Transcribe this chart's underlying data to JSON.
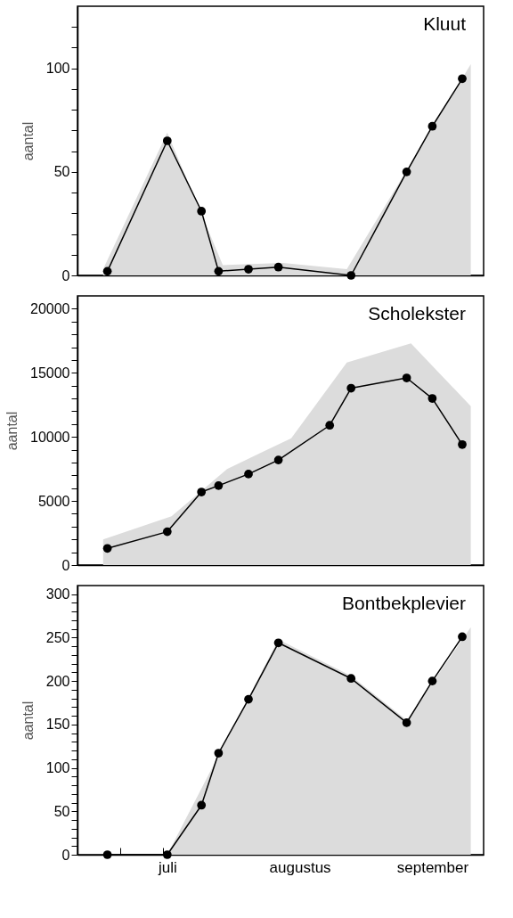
{
  "chart_data": [
    {
      "type": "line",
      "title": "Kluut",
      "ylabel": "aantal",
      "xlim": [
        "--06-10",
        "--09-13"
      ],
      "ylim": [
        0,
        130
      ],
      "tick_labels": "y",
      "xticks": [
        {
          "value": "--06-20",
          "label": null
        },
        {
          "value": "--06-30",
          "label": null
        },
        {
          "value": "--07-10",
          "label": null
        },
        {
          "value": "--07-20",
          "label": null
        },
        {
          "value": "--07-30",
          "label": null
        },
        {
          "value": "--08-09",
          "label": null
        },
        {
          "value": "--08-19",
          "label": null
        },
        {
          "value": "--08-29",
          "label": null
        },
        {
          "value": "--09-08",
          "label": null
        }
      ],
      "yticks": [
        0,
        {
          "value": 10,
          "label": null
        },
        {
          "value": 20,
          "label": null
        },
        {
          "value": 30,
          "label": null
        },
        {
          "value": 40,
          "label": null
        },
        50,
        {
          "value": 60,
          "label": null
        },
        {
          "value": 70,
          "label": null
        },
        {
          "value": 80,
          "label": null
        },
        {
          "value": 90,
          "label": null
        },
        100,
        {
          "value": 110,
          "label": null
        },
        {
          "value": 120,
          "label": null
        }
      ],
      "series": [
        {
          "type": "area",
          "color": "#dcdcdc",
          "x": [
            "--06-16",
            "--07-01",
            "--07-14",
            "--07-28",
            "--08-12",
            "--09-10"
          ],
          "values": [
            3,
            69,
            5,
            6,
            3,
            102
          ]
        },
        {
          "type": "line",
          "marker": "circle",
          "color": "#000000",
          "x": [
            "--06-17",
            "--07-01",
            "--07-09",
            "--07-13",
            "--07-20",
            "--07-27",
            "--08-13",
            "--08-26",
            "--09-01",
            "--09-08"
          ],
          "values": [
            2,
            65,
            31,
            2,
            3,
            4,
            0,
            50,
            72,
            95
          ]
        }
      ]
    },
    {
      "type": "line",
      "title": "Scholekster",
      "ylabel": "aantal",
      "xlim": [
        "--06-10",
        "--09-13"
      ],
      "ylim": [
        0,
        21000
      ],
      "tick_labels": "y",
      "xticks": [
        {
          "value": "--06-20",
          "label": null
        },
        {
          "value": "--06-30",
          "label": null
        },
        {
          "value": "--07-10",
          "label": null
        },
        {
          "value": "--07-20",
          "label": null
        },
        {
          "value": "--07-30",
          "label": null
        },
        {
          "value": "--08-09",
          "label": null
        },
        {
          "value": "--08-19",
          "label": null
        },
        {
          "value": "--08-29",
          "label": null
        },
        {
          "value": "--09-08",
          "label": null
        }
      ],
      "yticks": [
        0,
        {
          "value": 1000,
          "label": null
        },
        {
          "value": 2000,
          "label": null
        },
        {
          "value": 3000,
          "label": null
        },
        {
          "value": 4000,
          "label": null
        },
        5000,
        {
          "value": 6000,
          "label": null
        },
        {
          "value": 7000,
          "label": null
        },
        {
          "value": 8000,
          "label": null
        },
        {
          "value": 9000,
          "label": null
        },
        10000,
        {
          "value": 11000,
          "label": null
        },
        {
          "value": 12000,
          "label": null
        },
        {
          "value": 13000,
          "label": null
        },
        {
          "value": 14000,
          "label": null
        },
        15000,
        {
          "value": 16000,
          "label": null
        },
        {
          "value": 17000,
          "label": null
        },
        {
          "value": 18000,
          "label": null
        },
        {
          "value": 19000,
          "label": null
        },
        20000
      ],
      "series": [
        {
          "type": "area",
          "color": "#dcdcdc",
          "x": [
            "--06-16",
            "--07-02",
            "--07-15",
            "--07-30",
            "--08-12",
            "--08-27",
            "--09-10"
          ],
          "values": [
            2000,
            3800,
            7500,
            9900,
            15800,
            17300,
            12400
          ]
        },
        {
          "type": "line",
          "marker": "circle",
          "color": "#000000",
          "x": [
            "--06-17",
            "--07-01",
            "--07-09",
            "--07-13",
            "--07-20",
            "--07-27",
            "--08-08",
            "--08-13",
            "--08-26",
            "--09-01",
            "--09-08"
          ],
          "values": [
            1300,
            2600,
            5700,
            6200,
            7100,
            8200,
            10900,
            13800,
            14600,
            13000,
            9400
          ]
        }
      ]
    },
    {
      "type": "line",
      "title": "Bontbekplevier",
      "ylabel": "aantal",
      "xlim": [
        "--06-10",
        "--09-13"
      ],
      "ylim": [
        0,
        310
      ],
      "xticks": [
        {
          "value": "--06-20",
          "label": null
        },
        {
          "value": "--06-30",
          "label": null
        },
        {
          "value": "--07-01",
          "label": "juli"
        },
        {
          "value": "--07-10",
          "label": null
        },
        {
          "value": "--07-20",
          "label": null
        },
        {
          "value": "--07-30",
          "label": null
        },
        {
          "value": "--08-01",
          "label": "augustus"
        },
        {
          "value": "--08-09",
          "label": null
        },
        {
          "value": "--08-19",
          "label": null
        },
        {
          "value": "--08-29",
          "label": null
        },
        {
          "value": "--09-01",
          "label": "september"
        },
        {
          "value": "--09-08",
          "label": null
        }
      ],
      "yticks": [
        0,
        {
          "value": 10,
          "label": null
        },
        {
          "value": 20,
          "label": null
        },
        {
          "value": 30,
          "label": null
        },
        {
          "value": 40,
          "label": null
        },
        50,
        {
          "value": 60,
          "label": null
        },
        {
          "value": 70,
          "label": null
        },
        {
          "value": 80,
          "label": null
        },
        {
          "value": 90,
          "label": null
        },
        100,
        {
          "value": 110,
          "label": null
        },
        {
          "value": 120,
          "label": null
        },
        {
          "value": 130,
          "label": null
        },
        {
          "value": 140,
          "label": null
        },
        150,
        {
          "value": 160,
          "label": null
        },
        {
          "value": 170,
          "label": null
        },
        {
          "value": 180,
          "label": null
        },
        {
          "value": 190,
          "label": null
        },
        200,
        {
          "value": 210,
          "label": null
        },
        {
          "value": 220,
          "label": null
        },
        {
          "value": 230,
          "label": null
        },
        {
          "value": 240,
          "label": null
        },
        250,
        {
          "value": 260,
          "label": null
        },
        {
          "value": 270,
          "label": null
        },
        {
          "value": 280,
          "label": null
        },
        {
          "value": 290,
          "label": null
        },
        300
      ],
      "series": [
        {
          "type": "area",
          "color": "#dcdcdc",
          "x": [
            "--06-17",
            "--07-01",
            "--07-27",
            "--08-13",
            "--08-26",
            "--09-10"
          ],
          "values": [
            0,
            0,
            248,
            206,
            155,
            262
          ]
        },
        {
          "type": "line",
          "marker": "circle",
          "color": "#000000",
          "x": [
            "--06-17",
            "--07-01",
            "--07-09",
            "--07-13",
            "--07-20",
            "--07-27",
            "--08-13",
            "--08-26",
            "--09-01",
            "--09-08"
          ],
          "values": [
            0,
            0,
            57,
            117,
            179,
            244,
            203,
            152,
            200,
            251
          ]
        }
      ]
    }
  ]
}
